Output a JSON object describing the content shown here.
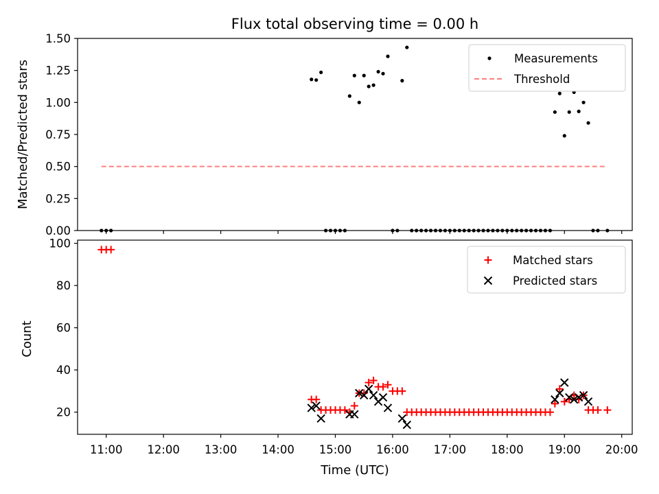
{
  "colors": {
    "measurement": "#000000",
    "threshold": "#ff7f7f",
    "matched": "#ff0000",
    "predicted": "#000000"
  },
  "chart_data": [
    {
      "type": "scatter",
      "title": "Flux total observing time = 0.00 h",
      "xlabel": "",
      "ylabel": "Matched/Predicted stars",
      "ylim": [
        0,
        1.5
      ],
      "y_ticks": [
        0.0,
        0.25,
        0.5,
        0.75,
        1.0,
        1.25,
        1.5
      ],
      "y_tick_labels": [
        "0.00",
        "0.25",
        "0.50",
        "0.75",
        "1.00",
        "1.25",
        "1.50"
      ],
      "legend_position": "top-right",
      "legend": [
        "Measurements",
        "Threshold"
      ],
      "series": [
        {
          "name": "Measurements",
          "style": "dots",
          "points": [
            [
              "10:55",
              0
            ],
            [
              "11:00",
              0
            ],
            [
              "11:05",
              0
            ],
            [
              "14:35",
              1.18
            ],
            [
              "14:40",
              1.175
            ],
            [
              "14:45",
              1.235
            ],
            [
              "14:50",
              0
            ],
            [
              "14:55",
              0
            ],
            [
              "15:00",
              0
            ],
            [
              "15:05",
              0
            ],
            [
              "15:10",
              0
            ],
            [
              "15:15",
              1.05
            ],
            [
              "15:20",
              1.21
            ],
            [
              "15:25",
              1.0
            ],
            [
              "15:30",
              1.21
            ],
            [
              "15:35",
              1.125
            ],
            [
              "15:40",
              1.135
            ],
            [
              "15:45",
              1.24
            ],
            [
              "15:50",
              1.225
            ],
            [
              "15:55",
              1.36
            ],
            [
              "16:00",
              0
            ],
            [
              "16:05",
              0
            ],
            [
              "16:10",
              1.17
            ],
            [
              "16:15",
              1.43
            ],
            [
              "16:20",
              0
            ],
            [
              "16:25",
              0
            ],
            [
              "16:30",
              0
            ],
            [
              "16:35",
              0
            ],
            [
              "16:40",
              0
            ],
            [
              "16:45",
              0
            ],
            [
              "16:50",
              0
            ],
            [
              "16:55",
              0
            ],
            [
              "17:00",
              0
            ],
            [
              "17:05",
              0
            ],
            [
              "17:10",
              0
            ],
            [
              "17:15",
              0
            ],
            [
              "17:20",
              0
            ],
            [
              "17:25",
              0
            ],
            [
              "17:30",
              0
            ],
            [
              "17:35",
              0
            ],
            [
              "17:40",
              0
            ],
            [
              "17:45",
              0
            ],
            [
              "17:50",
              0
            ],
            [
              "17:55",
              0
            ],
            [
              "18:00",
              0
            ],
            [
              "18:05",
              0
            ],
            [
              "18:10",
              0
            ],
            [
              "18:15",
              0
            ],
            [
              "18:20",
              0
            ],
            [
              "18:25",
              0
            ],
            [
              "18:30",
              0
            ],
            [
              "18:35",
              0
            ],
            [
              "18:40",
              0
            ],
            [
              "18:45",
              0
            ],
            [
              "18:50",
              0.925
            ],
            [
              "18:55",
              1.07
            ],
            [
              "19:00",
              0.74
            ],
            [
              "19:05",
              0.925
            ],
            [
              "19:10",
              1.08
            ],
            [
              "19:15",
              0.93
            ],
            [
              "19:20",
              1.0
            ],
            [
              "19:25",
              0.84
            ],
            [
              "19:30",
              0
            ],
            [
              "19:35",
              0
            ],
            [
              "19:45",
              0
            ]
          ]
        },
        {
          "name": "Threshold",
          "style": "dashed-line",
          "points": [
            [
              "10:55",
              0.5
            ],
            [
              "19:45",
              0.5
            ]
          ]
        }
      ]
    },
    {
      "type": "scatter",
      "title": "",
      "xlabel": "Time (UTC)",
      "ylabel": "Count",
      "ylim": [
        9.5,
        101.5
      ],
      "y_ticks": [
        20,
        40,
        60,
        80,
        100
      ],
      "y_tick_labels": [
        "20",
        "40",
        "60",
        "80",
        "100"
      ],
      "xlim": [
        "10:30",
        "20:11"
      ],
      "x_ticks": [
        "11:00",
        "12:00",
        "13:00",
        "14:00",
        "15:00",
        "16:00",
        "17:00",
        "18:00",
        "19:00",
        "20:00"
      ],
      "x_tick_labels": [
        "11:00",
        "12:00",
        "13:00",
        "14:00",
        "15:00",
        "16:00",
        "17:00",
        "18:00",
        "19:00",
        "20:00"
      ],
      "legend_position": "top-right",
      "legend": [
        "Matched stars",
        "Predicted stars"
      ],
      "series": [
        {
          "name": "Matched stars",
          "marker": "+",
          "points": [
            [
              "10:55",
              97
            ],
            [
              "11:00",
              97
            ],
            [
              "11:05",
              97
            ],
            [
              "14:35",
              26
            ],
            [
              "14:40",
              26
            ],
            [
              "14:45",
              21
            ],
            [
              "14:50",
              21
            ],
            [
              "14:55",
              21
            ],
            [
              "15:00",
              21
            ],
            [
              "15:05",
              21
            ],
            [
              "15:10",
              21
            ],
            [
              "15:15",
              20
            ],
            [
              "15:20",
              23
            ],
            [
              "15:25",
              29
            ],
            [
              "15:30",
              29
            ],
            [
              "15:35",
              34
            ],
            [
              "15:40",
              35
            ],
            [
              "15:45",
              32
            ],
            [
              "15:50",
              32
            ],
            [
              "15:55",
              33
            ],
            [
              "16:00",
              30
            ],
            [
              "16:05",
              30
            ],
            [
              "16:10",
              30
            ],
            [
              "16:15",
              20
            ],
            [
              "16:20",
              20
            ],
            [
              "16:25",
              20
            ],
            [
              "16:30",
              20
            ],
            [
              "16:35",
              20
            ],
            [
              "16:40",
              20
            ],
            [
              "16:45",
              20
            ],
            [
              "16:50",
              20
            ],
            [
              "16:55",
              20
            ],
            [
              "17:00",
              20
            ],
            [
              "17:05",
              20
            ],
            [
              "17:10",
              20
            ],
            [
              "17:15",
              20
            ],
            [
              "17:20",
              20
            ],
            [
              "17:25",
              20
            ],
            [
              "17:30",
              20
            ],
            [
              "17:35",
              20
            ],
            [
              "17:40",
              20
            ],
            [
              "17:45",
              20
            ],
            [
              "17:50",
              20
            ],
            [
              "17:55",
              20
            ],
            [
              "18:00",
              20
            ],
            [
              "18:05",
              20
            ],
            [
              "18:10",
              20
            ],
            [
              "18:15",
              20
            ],
            [
              "18:20",
              20
            ],
            [
              "18:25",
              20
            ],
            [
              "18:30",
              20
            ],
            [
              "18:35",
              20
            ],
            [
              "18:40",
              20
            ],
            [
              "18:45",
              20
            ],
            [
              "18:50",
              24
            ],
            [
              "18:55",
              31
            ],
            [
              "19:00",
              25
            ],
            [
              "19:05",
              26
            ],
            [
              "19:10",
              28
            ],
            [
              "19:15",
              26
            ],
            [
              "19:20",
              28
            ],
            [
              "19:25",
              21
            ],
            [
              "19:30",
              21
            ],
            [
              "19:35",
              21
            ],
            [
              "19:45",
              21
            ]
          ]
        },
        {
          "name": "Predicted stars",
          "marker": "x",
          "points": [
            [
              "14:35",
              22
            ],
            [
              "14:40",
              23
            ],
            [
              "14:45",
              17
            ],
            [
              "15:15",
              19
            ],
            [
              "15:20",
              19
            ],
            [
              "15:25",
              29
            ],
            [
              "15:30",
              28
            ],
            [
              "15:35",
              31
            ],
            [
              "15:40",
              28
            ],
            [
              "15:45",
              25
            ],
            [
              "15:50",
              27
            ],
            [
              "15:55",
              22
            ],
            [
              "16:10",
              17
            ],
            [
              "16:15",
              14
            ],
            [
              "18:50",
              26
            ],
            [
              "18:55",
              29
            ],
            [
              "19:00",
              34
            ],
            [
              "19:05",
              27
            ],
            [
              "19:10",
              26
            ],
            [
              "19:15",
              27
            ],
            [
              "19:20",
              28
            ],
            [
              "19:25",
              25
            ]
          ]
        }
      ]
    }
  ]
}
